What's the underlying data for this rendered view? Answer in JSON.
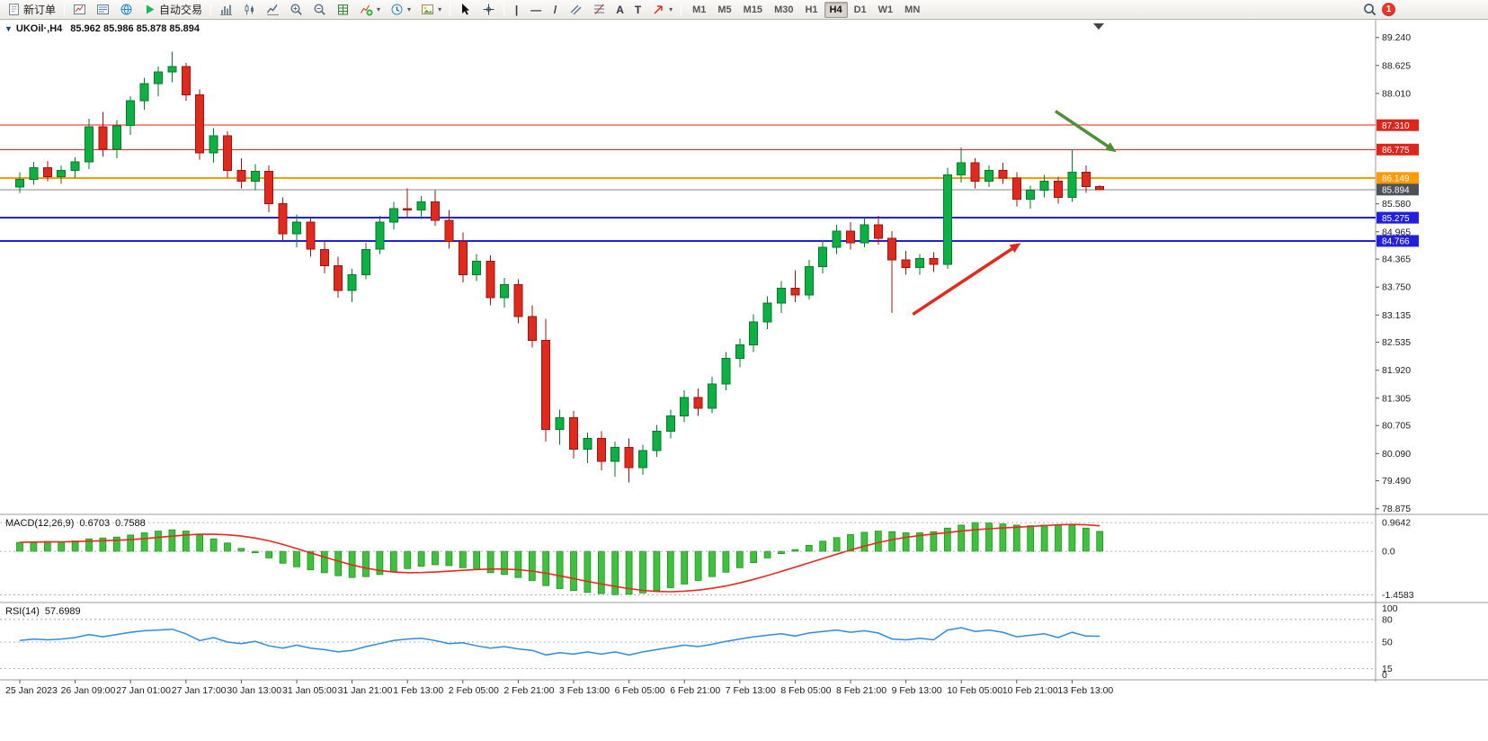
{
  "window": {
    "badge_count": "1"
  },
  "toolbar": {
    "new_order": "新订单",
    "auto_trading": "自动交易",
    "text_tool": "A",
    "label_tool": "T",
    "vline_glyph": "|",
    "hline_glyph": "—",
    "trendline_glyph": "/",
    "timeframes": [
      "M1",
      "M5",
      "M15",
      "M30",
      "H1",
      "H4",
      "D1",
      "W1",
      "MN"
    ],
    "active_timeframe": "H4"
  },
  "chart_header": {
    "collapse_glyph": "▼",
    "symbol": "UKOil·,H4",
    "ohlc": "85.962 85.986 85.878 85.894"
  },
  "macd_panel": {
    "label": "MACD(12,26,9)",
    "value_main": "0.6703",
    "value_signal": "0.7588"
  },
  "rsi_panel": {
    "label": "RSI(14)",
    "value": "57.6989"
  },
  "chart_data": {
    "type": "candlestick",
    "symbol": "UKOil",
    "timeframe": "H4",
    "ohlc_display": {
      "open": "85.962",
      "high": "85.986",
      "low": "85.878",
      "close": "85.894"
    },
    "y_range": [
      78.75,
      89.55
    ],
    "y_ticks": [
      "89.240",
      "88.625",
      "88.010",
      "85.580",
      "84.965",
      "84.365",
      "83.750",
      "83.135",
      "82.535",
      "81.920",
      "81.305",
      "80.705",
      "80.090",
      "79.490",
      "78.875"
    ],
    "levels": [
      {
        "value": 87.31,
        "label": "87.310",
        "color": "#f21d12",
        "badge": "#dd261b",
        "width": 1
      },
      {
        "value": 86.775,
        "label": "86.775",
        "color": "#f21d12",
        "badge": "#dd261b",
        "width": 1
      },
      {
        "value": 86.149,
        "label": "86.149",
        "color": "#ff9b00",
        "badge": "#ff9b00",
        "width": 2
      },
      {
        "value": 85.894,
        "label": "85.894",
        "color": "#8a8a8a",
        "badge": "#4d525a",
        "width": 1
      },
      {
        "value": 85.275,
        "label": "85.275",
        "color": "#2121dd",
        "badge": "#2121dd",
        "width": 2
      },
      {
        "value": 84.766,
        "label": "84.766",
        "color": "#2121dd",
        "badge": "#2121dd",
        "width": 2
      }
    ],
    "colors": {
      "up": "#0cb043",
      "up_border": "#067a2b",
      "down": "#e02a1d",
      "down_border": "#9c150c",
      "macd_hist": "#3fc13f",
      "macd_hist_border": "#128a12",
      "macd_signal": "#e8291f",
      "rsi": "#2d8ce0",
      "grid": "#9a9a9a",
      "text": "#1b1b1b"
    },
    "candles": [
      [
        85.95,
        86.28,
        85.82,
        86.12
      ],
      [
        86.12,
        86.5,
        86.0,
        86.38
      ],
      [
        86.38,
        86.52,
        86.08,
        86.18
      ],
      [
        86.18,
        86.42,
        86.02,
        86.32
      ],
      [
        86.32,
        86.6,
        86.15,
        86.5
      ],
      [
        86.5,
        87.45,
        86.35,
        87.28
      ],
      [
        87.28,
        87.6,
        86.62,
        86.78
      ],
      [
        86.78,
        87.42,
        86.58,
        87.3
      ],
      [
        87.3,
        87.95,
        87.1,
        87.85
      ],
      [
        87.85,
        88.35,
        87.65,
        88.22
      ],
      [
        88.22,
        88.6,
        87.95,
        88.48
      ],
      [
        88.48,
        88.93,
        88.25,
        88.6
      ],
      [
        88.6,
        88.68,
        87.85,
        87.98
      ],
      [
        87.98,
        88.1,
        86.55,
        86.7
      ],
      [
        86.7,
        87.25,
        86.48,
        87.08
      ],
      [
        87.08,
        87.18,
        86.15,
        86.32
      ],
      [
        86.32,
        86.58,
        85.92,
        86.08
      ],
      [
        86.08,
        86.45,
        85.88,
        86.3
      ],
      [
        86.3,
        86.42,
        85.4,
        85.58
      ],
      [
        85.58,
        85.72,
        84.75,
        84.92
      ],
      [
        84.92,
        85.35,
        84.62,
        85.18
      ],
      [
        85.18,
        85.28,
        84.42,
        84.58
      ],
      [
        84.58,
        84.78,
        84.05,
        84.22
      ],
      [
        84.22,
        84.42,
        83.52,
        83.68
      ],
      [
        83.68,
        84.15,
        83.42,
        84.02
      ],
      [
        84.02,
        84.72,
        83.92,
        84.58
      ],
      [
        84.58,
        85.32,
        84.48,
        85.18
      ],
      [
        85.18,
        85.62,
        85.02,
        85.48
      ],
      [
        85.48,
        85.92,
        85.3,
        85.45
      ],
      [
        85.45,
        85.75,
        85.25,
        85.62
      ],
      [
        85.62,
        85.88,
        85.1,
        85.22
      ],
      [
        85.22,
        85.45,
        84.6,
        84.75
      ],
      [
        84.75,
        84.95,
        83.85,
        84.02
      ],
      [
        84.02,
        84.48,
        83.88,
        84.32
      ],
      [
        84.32,
        84.45,
        83.35,
        83.52
      ],
      [
        83.52,
        83.95,
        83.3,
        83.8
      ],
      [
        83.8,
        83.92,
        82.95,
        83.1
      ],
      [
        83.1,
        83.35,
        82.42,
        82.58
      ],
      [
        82.58,
        83.05,
        80.35,
        80.62
      ],
      [
        80.62,
        81.05,
        80.28,
        80.88
      ],
      [
        80.88,
        81.02,
        79.98,
        80.18
      ],
      [
        80.18,
        80.55,
        79.88,
        80.42
      ],
      [
        80.42,
        80.58,
        79.72,
        79.92
      ],
      [
        79.92,
        80.35,
        79.58,
        80.22
      ],
      [
        80.22,
        80.42,
        79.45,
        79.78
      ],
      [
        79.78,
        80.28,
        79.62,
        80.15
      ],
      [
        80.15,
        80.72,
        80.02,
        80.58
      ],
      [
        80.58,
        81.05,
        80.42,
        80.92
      ],
      [
        80.92,
        81.48,
        80.78,
        81.32
      ],
      [
        81.32,
        81.52,
        80.92,
        81.08
      ],
      [
        81.08,
        81.78,
        80.98,
        81.62
      ],
      [
        81.62,
        82.32,
        81.48,
        82.18
      ],
      [
        82.18,
        82.62,
        81.98,
        82.48
      ],
      [
        82.48,
        83.15,
        82.32,
        82.98
      ],
      [
        82.98,
        83.55,
        82.82,
        83.4
      ],
      [
        83.4,
        83.88,
        83.18,
        83.72
      ],
      [
        83.72,
        84.12,
        83.42,
        83.58
      ],
      [
        83.58,
        84.35,
        83.48,
        84.2
      ],
      [
        84.2,
        84.78,
        84.05,
        84.62
      ],
      [
        84.62,
        85.12,
        84.48,
        84.98
      ],
      [
        84.98,
        85.18,
        84.58,
        84.72
      ],
      [
        84.72,
        85.28,
        84.62,
        85.12
      ],
      [
        85.12,
        85.32,
        84.68,
        84.82
      ],
      [
        84.82,
        84.98,
        83.18,
        84.35
      ],
      [
        84.35,
        84.55,
        84.02,
        84.18
      ],
      [
        84.18,
        84.48,
        84.02,
        84.38
      ],
      [
        84.38,
        84.52,
        84.08,
        84.25
      ],
      [
        84.25,
        86.38,
        84.15,
        86.22
      ],
      [
        86.22,
        86.82,
        86.05,
        86.48
      ],
      [
        86.48,
        86.58,
        85.92,
        86.08
      ],
      [
        86.08,
        86.42,
        85.95,
        86.32
      ],
      [
        86.32,
        86.48,
        86.02,
        86.15
      ],
      [
        86.15,
        86.28,
        85.52,
        85.68
      ],
      [
        85.68,
        85.98,
        85.48,
        85.88
      ],
      [
        85.88,
        86.22,
        85.72,
        86.08
      ],
      [
        86.08,
        86.18,
        85.58,
        85.72
      ],
      [
        85.72,
        86.78,
        85.62,
        86.28
      ],
      [
        86.28,
        86.42,
        85.82,
        85.96
      ],
      [
        85.962,
        85.986,
        85.878,
        85.894
      ]
    ],
    "x_labels": [
      "25 Jan 2023",
      "26 Jan 09:00",
      "27 Jan 01:00",
      "27 Jan 17:00",
      "30 Jan 13:00",
      "31 Jan 05:00",
      "31 Jan 21:00",
      "1 Feb 13:00",
      "2 Feb 05:00",
      "2 Feb 21:00",
      "3 Feb 13:00",
      "6 Feb 05:00",
      "6 Feb 21:00",
      "7 Feb 13:00",
      "8 Feb 05:00",
      "8 Feb 21:00",
      "9 Feb 13:00",
      "10 Feb 05:00",
      "10 Feb 21:00",
      "13 Feb 13:00"
    ],
    "x_label_step": 4,
    "macd": {
      "histogram": [
        0.3,
        0.32,
        0.33,
        0.32,
        0.35,
        0.42,
        0.45,
        0.48,
        0.55,
        0.62,
        0.68,
        0.72,
        0.68,
        0.55,
        0.42,
        0.28,
        0.1,
        -0.05,
        -0.22,
        -0.4,
        -0.52,
        -0.62,
        -0.72,
        -0.82,
        -0.88,
        -0.85,
        -0.78,
        -0.68,
        -0.58,
        -0.5,
        -0.45,
        -0.48,
        -0.55,
        -0.62,
        -0.72,
        -0.78,
        -0.88,
        -0.98,
        -1.15,
        -1.25,
        -1.32,
        -1.38,
        -1.42,
        -1.4583,
        -1.44,
        -1.4,
        -1.32,
        -1.22,
        -1.1,
        -0.98,
        -0.85,
        -0.7,
        -0.55,
        -0.38,
        -0.22,
        -0.08,
        0.06,
        0.2,
        0.34,
        0.46,
        0.56,
        0.64,
        0.68,
        0.66,
        0.62,
        0.62,
        0.66,
        0.78,
        0.88,
        0.9642,
        0.95,
        0.92,
        0.88,
        0.86,
        0.88,
        0.9,
        0.88,
        0.78,
        0.6703
      ],
      "axis": [
        {
          "value": 0.9642,
          "label": "0.9642"
        },
        {
          "value": 0,
          "label": "0.0"
        },
        {
          "value": -1.4583,
          "label": "-1.4583"
        }
      ],
      "range": [
        -1.72,
        1.18
      ]
    },
    "rsi": {
      "values": [
        52,
        54,
        53,
        54,
        56,
        60,
        57,
        60,
        63,
        65,
        66,
        67,
        61,
        52,
        56,
        50,
        48,
        51,
        45,
        42,
        46,
        42,
        40,
        37,
        39,
        44,
        48,
        52,
        54,
        55,
        52,
        48,
        49,
        45,
        42,
        44,
        41,
        39,
        33,
        36,
        34,
        37,
        34,
        37,
        33,
        37,
        40,
        43,
        46,
        44,
        47,
        51,
        54,
        57,
        59,
        61,
        58,
        62,
        64,
        66,
        63,
        65,
        62,
        54,
        53,
        55,
        53,
        66,
        69,
        64,
        66,
        63,
        57,
        59,
        61,
        56,
        63,
        58,
        57.6989
      ],
      "axis": [
        {
          "value": 100,
          "label": "100"
        },
        {
          "value": 80,
          "label": "80"
        },
        {
          "value": 50,
          "label": "50"
        },
        {
          "value": 15,
          "label": "15"
        },
        {
          "value": 0,
          "label": "0"
        }
      ],
      "dashed": [
        80,
        50,
        15
      ],
      "range": [
        0,
        100
      ]
    },
    "annotations": [
      {
        "name": "red-up-arrow",
        "color": "#e02a1d",
        "from": [
          64.5,
          83.15
        ],
        "to": [
          72.3,
          84.72
        ],
        "width": 3.5
      },
      {
        "name": "green-down-arrow",
        "color": "#4c8f35",
        "from": [
          74.8,
          87.62
        ],
        "to": [
          79.2,
          86.72
        ],
        "width": 3.5
      }
    ]
  }
}
